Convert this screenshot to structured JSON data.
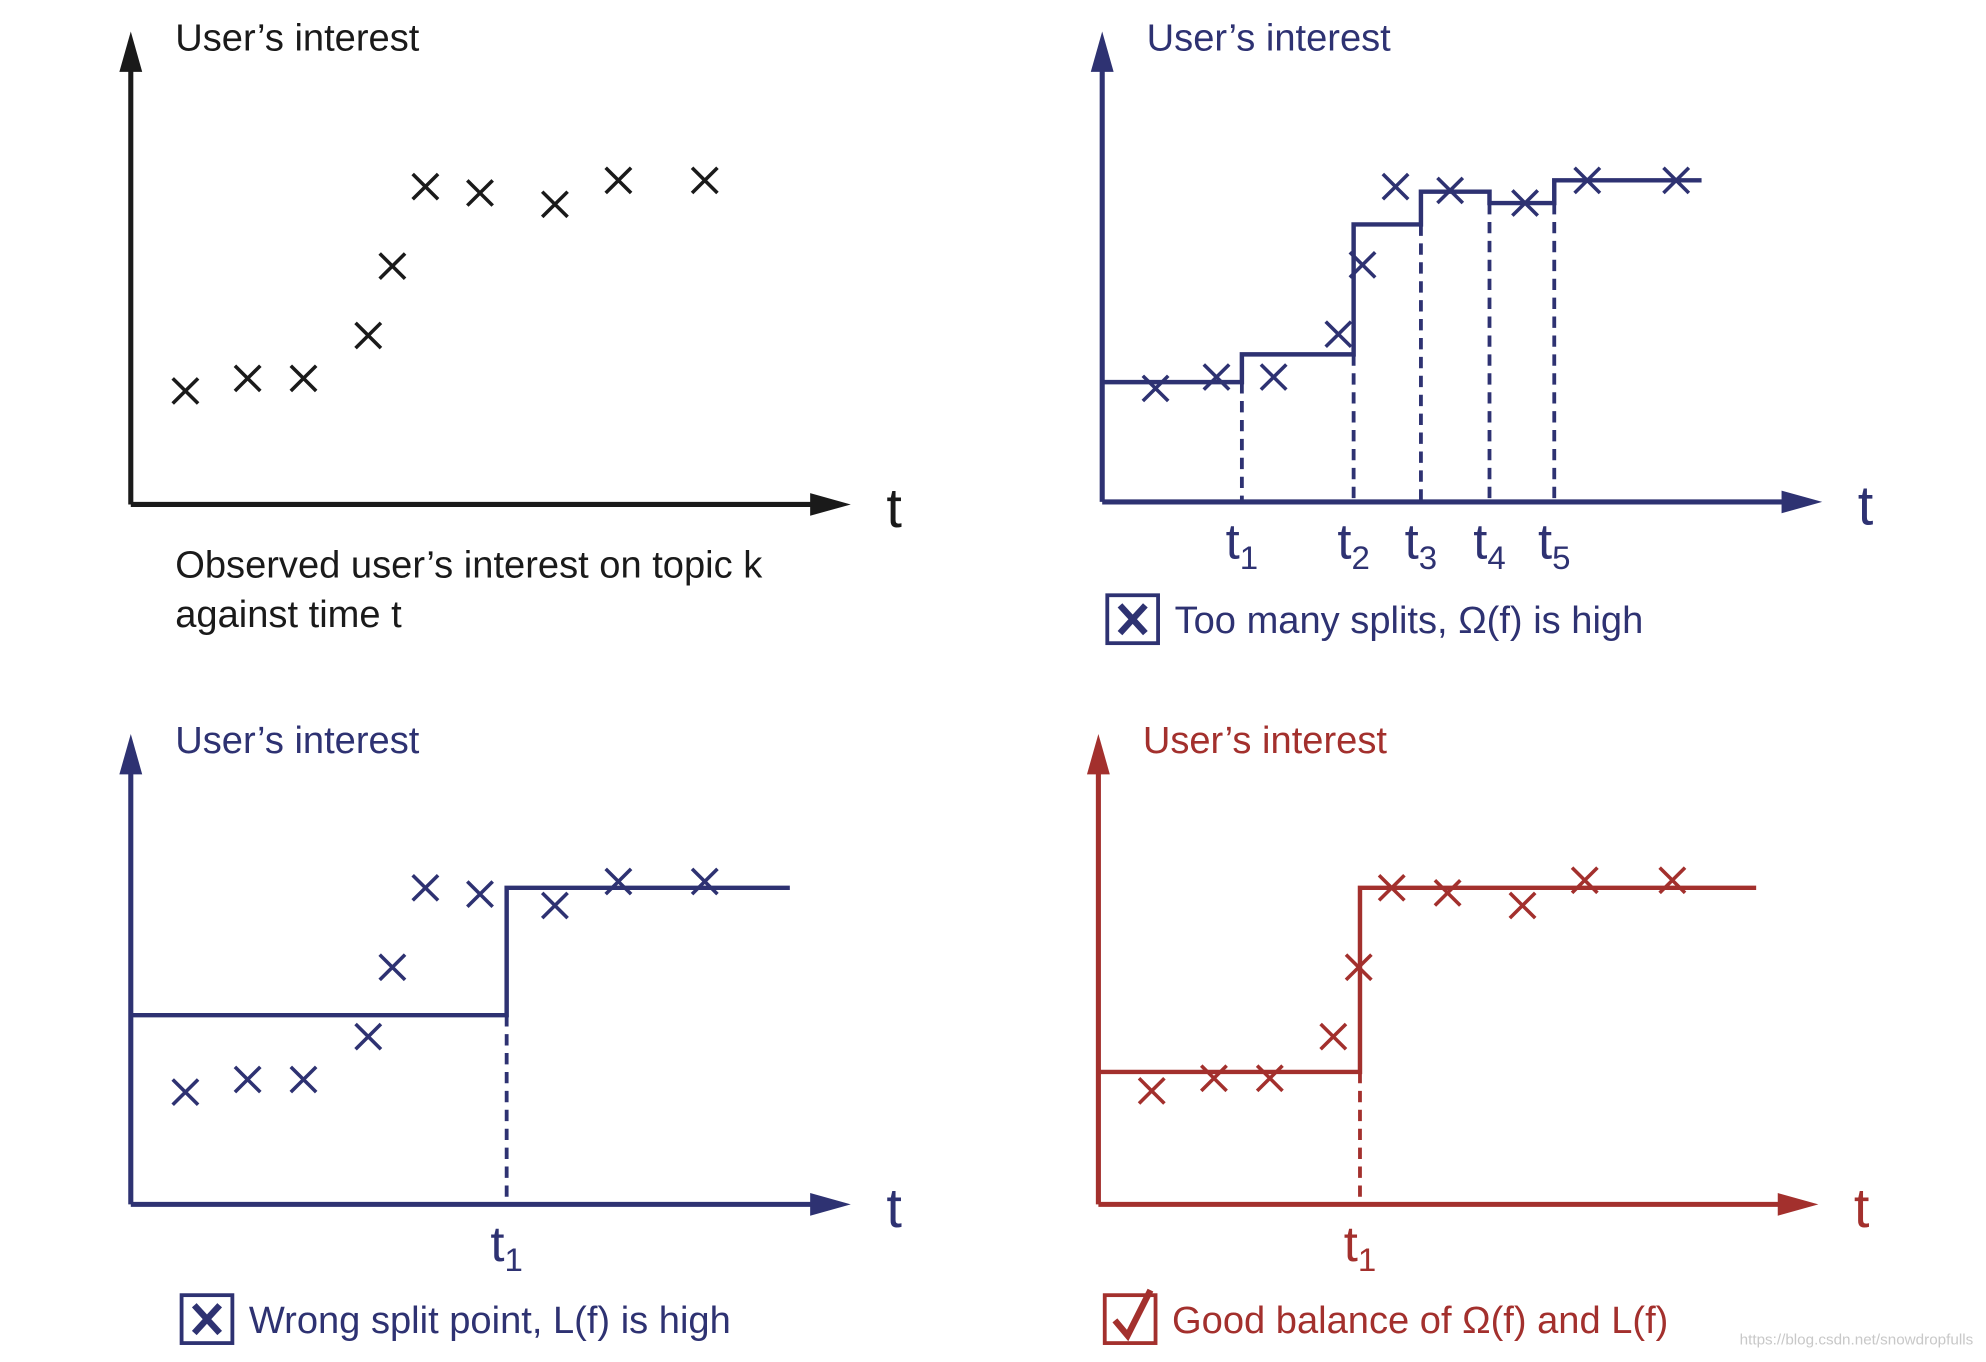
{
  "panels": [
    {
      "y_label": "User’s interest",
      "x_label": "t",
      "caption": [
        "Observed user’s interest on topic k",
        "against time t"
      ]
    },
    {
      "y_label": "User’s interest",
      "x_label": "t",
      "ticks": [
        {
          "main": "t",
          "sub": "1"
        },
        {
          "main": "t",
          "sub": "2"
        },
        {
          "main": "t",
          "sub": "3"
        },
        {
          "main": "t",
          "sub": "4"
        },
        {
          "main": "t",
          "sub": "5"
        }
      ],
      "caption": "Too many splits, Ω(f) is high"
    },
    {
      "y_label": "User’s interest",
      "x_label": "t",
      "ticks": [
        {
          "main": "t",
          "sub": "1"
        }
      ],
      "caption": "Wrong split point, L(f) is high"
    },
    {
      "y_label": "User’s interest",
      "x_label": "t",
      "ticks": [
        {
          "main": "t",
          "sub": "1"
        }
      ],
      "caption": "Good balance of Ω(f) and L(f)"
    }
  ],
  "watermark": "https://blog.csdn.net/snowdropfulls"
}
